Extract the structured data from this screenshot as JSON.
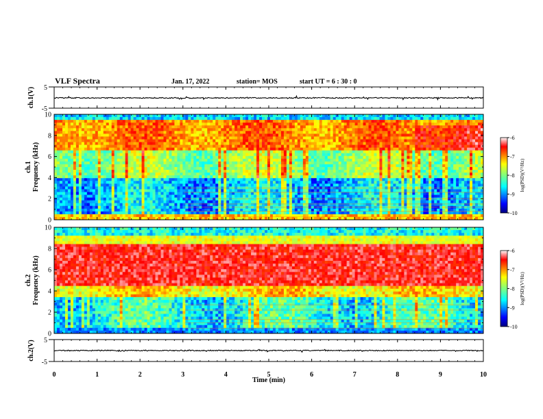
{
  "header": {
    "title": "VLF Spectra",
    "date": "Jan. 17, 2022",
    "station": "station= MOS",
    "start": "start  UT =   6 : 30 : 0"
  },
  "chart_data": [
    {
      "type": "line",
      "name": "ch1-waveform",
      "ylabel": "ch.1(V)",
      "ylim": [
        -5,
        5
      ],
      "yticks": [
        "5",
        "-5"
      ],
      "xlim": [
        0,
        10
      ]
    },
    {
      "type": "heatmap",
      "name": "ch1-spectrogram",
      "ylabel_channel": "ch.1",
      "ylabel": "Frequency (kHz)",
      "ylim": [
        0,
        10
      ],
      "yticks": [
        "0",
        "2",
        "4",
        "6",
        "8",
        "10"
      ],
      "xlim": [
        0,
        10
      ],
      "colorbar": {
        "label": "log(PSD)(V²/Hz)",
        "ticks": [
          "-6",
          "-7",
          "-8",
          "-9",
          "-10"
        ],
        "range": [
          -10,
          -6
        ]
      }
    },
    {
      "type": "heatmap",
      "name": "ch2-spectrogram",
      "ylabel_channel": "ch.2",
      "ylabel": "Frequency (kHz)",
      "ylim": [
        0,
        10
      ],
      "yticks": [
        "0",
        "2",
        "4",
        "6",
        "8",
        "10"
      ],
      "xlim": [
        0,
        10
      ],
      "colorbar": {
        "label": "log(PSD)(V²/Hz)",
        "ticks": [
          "-6",
          "-7",
          "-8",
          "-9",
          "-10"
        ],
        "range": [
          -10,
          -6
        ]
      }
    },
    {
      "type": "line",
      "name": "ch2-waveform",
      "ylabel": "ch.2(V)",
      "ylim": [
        -5,
        5
      ],
      "yticks": [
        "5",
        "-5"
      ],
      "xlim": [
        0,
        10
      ],
      "xlabel": "Time (min)",
      "xticks": [
        "0",
        "1",
        "2",
        "3",
        "4",
        "5",
        "6",
        "7",
        "8",
        "9",
        "10"
      ]
    }
  ]
}
